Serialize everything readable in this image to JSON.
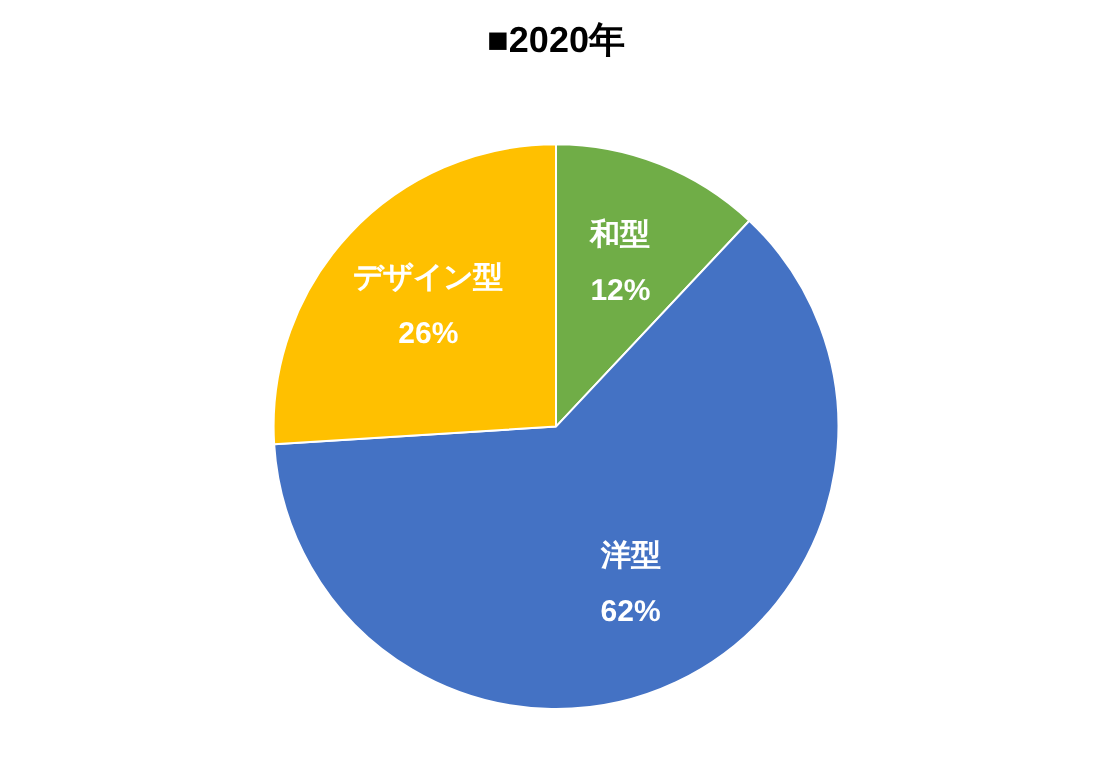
{
  "chart_data": {
    "type": "pie",
    "title": "■2020年",
    "categories": [
      "和型",
      "洋型",
      "デザイン型"
    ],
    "values": [
      12,
      62,
      26
    ],
    "value_labels": [
      "12%",
      "62%",
      "26%"
    ],
    "colors": [
      "#70ad47",
      "#4472c4",
      "#ffc000"
    ],
    "legend": false
  }
}
